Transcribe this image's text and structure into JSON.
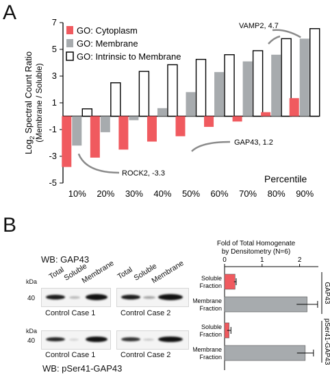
{
  "panel_a_label": "A",
  "panel_b_label": "B",
  "chart_data": [
    {
      "type": "bar",
      "ylabel_main": "Log",
      "ylabel_sub": "2",
      "ylabel_rest": " Spectral Count Ratio",
      "ylabel_line2": "(Membrane / Soluble)",
      "xlabel": "Percentile",
      "categories": [
        "10%",
        "20%",
        "30%",
        "40%",
        "50%",
        "60%",
        "70%",
        "80%",
        "90%"
      ],
      "ylim": [
        -5,
        7
      ],
      "yticks": [
        "7",
        "5",
        "3",
        "1",
        "-1",
        "-3",
        "-5"
      ],
      "series": [
        {
          "name": "GO: Cytoplasm",
          "color": "#f05a5f",
          "values": [
            -3.8,
            -3.1,
            -2.5,
            -1.9,
            -1.5,
            -0.8,
            -0.4,
            0.3,
            1.35
          ]
        },
        {
          "name": "GO: Membrane",
          "color": "#a7abae",
          "values": [
            -2.2,
            -1.2,
            -0.3,
            0.6,
            1.8,
            3.3,
            4.1,
            4.6,
            5.8
          ]
        },
        {
          "name": "GO: Intrinsic to Membrane",
          "color": "#ffffff",
          "values": [
            0.55,
            2.5,
            3.35,
            3.85,
            4.25,
            4.6,
            4.9,
            5.8,
            6.55
          ]
        }
      ],
      "annotations": [
        {
          "text": "VAMP2, 4.7",
          "target_series": 1,
          "target_index": 8
        },
        {
          "text": "GAP43, 1.2",
          "target_series": 0,
          "target_index": 4
        },
        {
          "text": "ROCK2, -3.3",
          "target_series": 1,
          "target_index": 0
        }
      ]
    },
    {
      "type": "bar",
      "title_line1": "Fold of Total Homogenate",
      "title_line2": "by Densitometry (N=6)",
      "xlim": [
        0,
        2.5
      ],
      "xticks": [
        "0",
        "1",
        "2"
      ],
      "groups": [
        {
          "name": "GAP43",
          "bars": [
            {
              "label_line1": "Soluble",
              "label_line2": "Fraction",
              "value": 0.28,
              "error": 0.03,
              "color": "#f05a5f"
            },
            {
              "label_line1": "Membrane",
              "label_line2": "Fraction",
              "value": 2.2,
              "error": 0.28,
              "color": "#a7abae"
            }
          ]
        },
        {
          "name": "pSer41-GAP43",
          "bars": [
            {
              "label_line1": "Soluble",
              "label_line2": "Fraction",
              "value": 0.12,
              "error": 0.05,
              "color": "#f05a5f"
            },
            {
              "label_line1": "Membrane",
              "label_line2": "Fraction",
              "value": 2.15,
              "error": 0.22,
              "color": "#a7abae"
            }
          ]
        }
      ]
    }
  ],
  "western_blots": {
    "top_title": "WB: GAP43",
    "bottom_title": "WB: pSer41-GAP43",
    "lanes": [
      "Total",
      "Soluble",
      "Membrane",
      "Total",
      "Soluble",
      "Membrane"
    ],
    "kda_label": "kDa",
    "marker": "40",
    "cases": [
      "Control Case 1",
      "Control Case 2"
    ]
  }
}
